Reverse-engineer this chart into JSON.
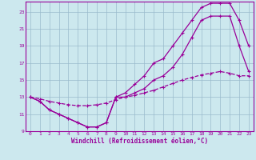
{
  "xlabel": "Windchill (Refroidissement éolien,°C)",
  "bg_color": "#cce8ee",
  "line_color": "#990099",
  "grid_color": "#99bbcc",
  "xlim": [
    -0.5,
    23.5
  ],
  "ylim": [
    9,
    24.2
  ],
  "xticks": [
    0,
    1,
    2,
    3,
    4,
    5,
    6,
    7,
    8,
    9,
    10,
    11,
    12,
    13,
    14,
    15,
    16,
    17,
    18,
    19,
    20,
    21,
    22,
    23
  ],
  "yticks": [
    9,
    11,
    13,
    15,
    17,
    19,
    21,
    23
  ],
  "line1_x": [
    0,
    1,
    2,
    3,
    4,
    5,
    6,
    7,
    8,
    9,
    10,
    11,
    12,
    13,
    14,
    15,
    16,
    17,
    18,
    19,
    20,
    21,
    22,
    23
  ],
  "line1_y": [
    13.0,
    12.5,
    11.5,
    11.0,
    10.5,
    10.0,
    9.5,
    9.5,
    10.0,
    13.0,
    13.5,
    14.5,
    15.5,
    17.0,
    17.5,
    19.0,
    20.5,
    22.0,
    23.5,
    24.0,
    24.0,
    24.0,
    22.0,
    19.0
  ],
  "line2_x": [
    0,
    1,
    2,
    3,
    4,
    5,
    6,
    7,
    8,
    9,
    10,
    11,
    12,
    13,
    14,
    15,
    16,
    17,
    18,
    19,
    20,
    21,
    22,
    23
  ],
  "line2_y": [
    13.0,
    12.5,
    11.5,
    11.0,
    10.5,
    10.0,
    9.5,
    9.5,
    10.0,
    13.0,
    13.0,
    13.5,
    14.0,
    15.0,
    15.5,
    16.5,
    18.0,
    20.0,
    22.0,
    22.5,
    22.5,
    22.5,
    19.0,
    16.0
  ],
  "line3_x": [
    0,
    1,
    2,
    3,
    4,
    5,
    6,
    7,
    8,
    9,
    10,
    11,
    12,
    13,
    14,
    15,
    16,
    17,
    18,
    19,
    20,
    21,
    22,
    23
  ],
  "line3_y": [
    13.0,
    12.8,
    12.5,
    12.3,
    12.1,
    12.0,
    12.0,
    12.1,
    12.3,
    12.7,
    13.0,
    13.2,
    13.5,
    13.8,
    14.2,
    14.6,
    15.0,
    15.3,
    15.6,
    15.8,
    16.0,
    15.8,
    15.5,
    15.5
  ],
  "figsize": [
    3.2,
    2.0
  ],
  "dpi": 100
}
